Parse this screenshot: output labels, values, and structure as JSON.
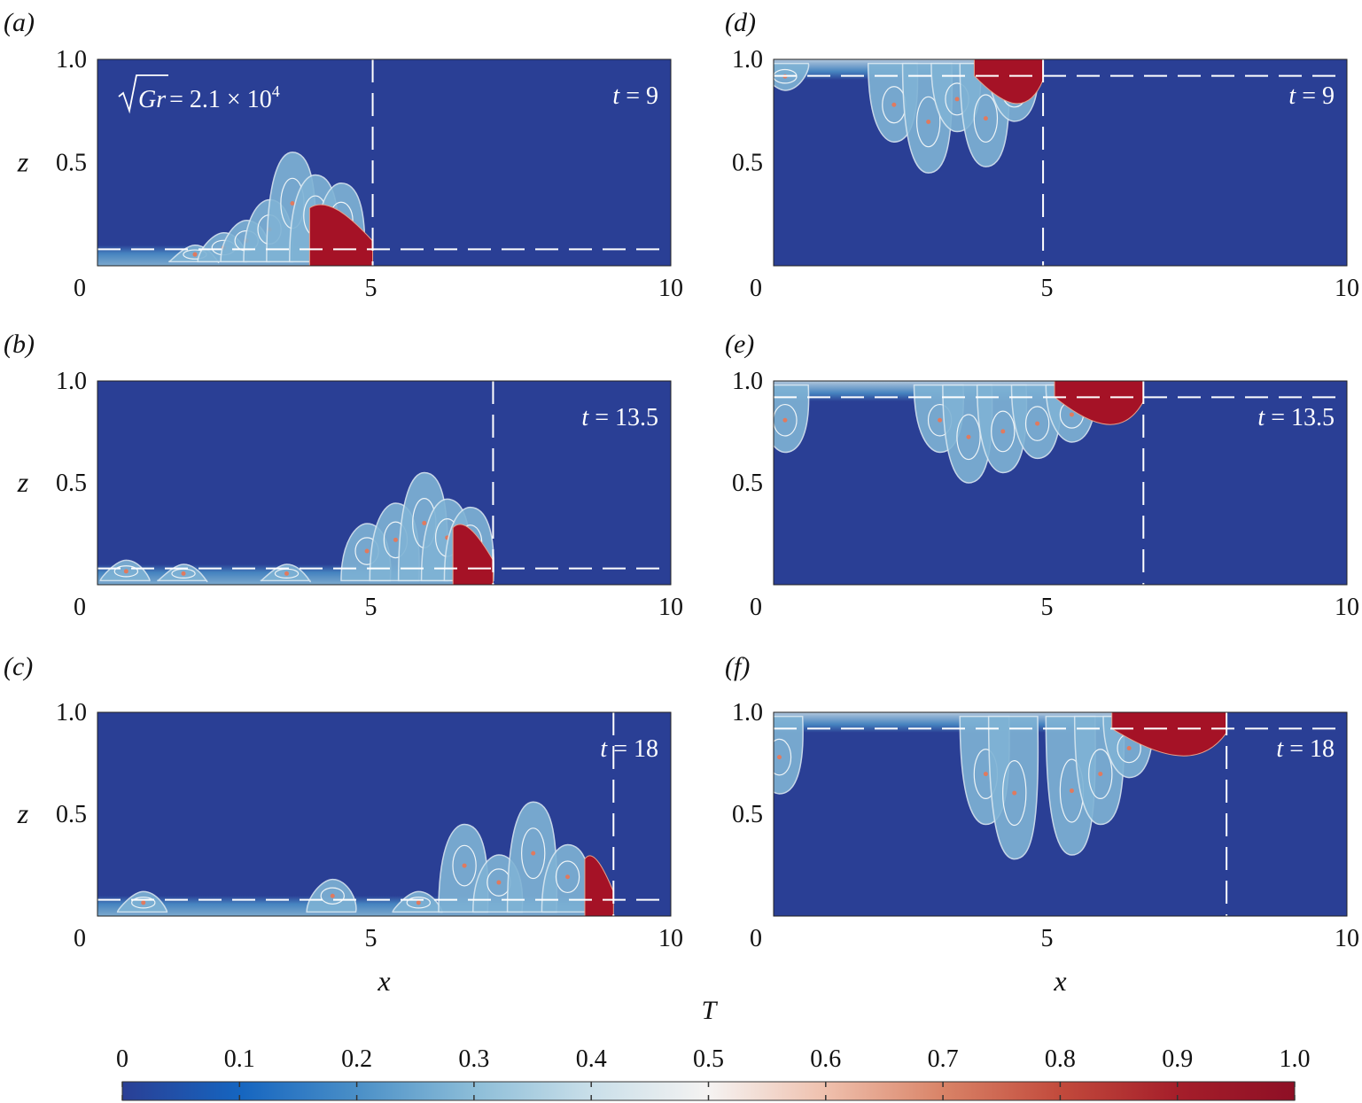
{
  "chart_data": [
    {
      "type": "heatmap",
      "panel": "(a)",
      "title": "",
      "annotation": "√Gr = 2.1 × 10^4",
      "annotation_parts": {
        "sqrt": "Gr",
        "eq": "= 2.1 × 10",
        "sup": "4"
      },
      "time_label": {
        "t": "t",
        "eq": "= 9"
      },
      "t": 9,
      "xlabel": "",
      "ylabel": "z",
      "xlim": [
        0,
        10
      ],
      "ylim": [
        0,
        1.0
      ],
      "xticks": [
        "0",
        "5",
        "10"
      ],
      "yticks": [
        "0.5",
        "1.0"
      ],
      "front_x": 4.8,
      "interface_z": 0.08,
      "current": "bottom",
      "dense_start_x": 3.7,
      "eddies": [
        {
          "x": 1.7,
          "h": 0.1
        },
        {
          "x": 2.2,
          "h": 0.16
        },
        {
          "x": 2.6,
          "h": 0.22
        },
        {
          "x": 3.0,
          "h": 0.32
        },
        {
          "x": 3.4,
          "h": 0.55
        },
        {
          "x": 3.8,
          "h": 0.44
        },
        {
          "x": 4.25,
          "h": 0.4
        }
      ]
    },
    {
      "type": "heatmap",
      "panel": "(b)",
      "title": "",
      "time_label": {
        "t": "t",
        "eq": "= 13.5"
      },
      "t": 13.5,
      "xlabel": "",
      "ylabel": "z",
      "xlim": [
        0,
        10
      ],
      "ylim": [
        0,
        1.0
      ],
      "xticks": [
        "0",
        "5",
        "10"
      ],
      "yticks": [
        "0.5",
        "1.0"
      ],
      "front_x": 6.9,
      "interface_z": 0.08,
      "current": "bottom",
      "dense_start_x": 6.2,
      "eddies": [
        {
          "x": 0.5,
          "h": 0.12
        },
        {
          "x": 1.5,
          "h": 0.1
        },
        {
          "x": 3.3,
          "h": 0.1
        },
        {
          "x": 4.7,
          "h": 0.3
        },
        {
          "x": 5.2,
          "h": 0.4
        },
        {
          "x": 5.7,
          "h": 0.55
        },
        {
          "x": 6.1,
          "h": 0.42
        },
        {
          "x": 6.5,
          "h": 0.38
        }
      ]
    },
    {
      "type": "heatmap",
      "panel": "(c)",
      "title": "",
      "time_label": {
        "t": "t",
        "eq": "= 18"
      },
      "t": 18,
      "xlabel": "x",
      "ylabel": "z",
      "xlim": [
        0,
        10
      ],
      "ylim": [
        0,
        1.0
      ],
      "xticks": [
        "0",
        "5",
        "10"
      ],
      "yticks": [
        "0.5",
        "1.0"
      ],
      "front_x": 9.0,
      "interface_z": 0.08,
      "current": "bottom",
      "dense_start_x": 8.5,
      "eddies": [
        {
          "x": 0.8,
          "h": 0.12
        },
        {
          "x": 4.1,
          "h": 0.18
        },
        {
          "x": 5.6,
          "h": 0.12
        },
        {
          "x": 6.4,
          "h": 0.45
        },
        {
          "x": 7.0,
          "h": 0.3
        },
        {
          "x": 7.6,
          "h": 0.56
        },
        {
          "x": 8.2,
          "h": 0.35
        }
      ]
    },
    {
      "type": "heatmap",
      "panel": "(d)",
      "title": "",
      "time_label": {
        "t": "t",
        "eq": "= 9"
      },
      "t": 9,
      "xlabel": "",
      "ylabel": "",
      "xlim": [
        0,
        10
      ],
      "ylim": [
        0,
        1.0
      ],
      "xticks": [
        "0",
        "5",
        "10"
      ],
      "yticks": [
        "0.5",
        "1.0"
      ],
      "front_x": 4.7,
      "interface_z": 0.92,
      "current": "top",
      "dense_start_x": 3.5,
      "dense_end_x": 4.7,
      "eddies": [
        {
          "x": 0.2,
          "h": 0.15
        },
        {
          "x": 2.1,
          "h": 0.4
        },
        {
          "x": 2.7,
          "h": 0.55
        },
        {
          "x": 3.2,
          "h": 0.35
        },
        {
          "x": 3.7,
          "h": 0.52
        },
        {
          "x": 4.2,
          "h": 0.3
        }
      ]
    },
    {
      "type": "heatmap",
      "panel": "(e)",
      "title": "",
      "time_label": {
        "t": "t",
        "eq": "= 13.5"
      },
      "t": 13.5,
      "xlabel": "",
      "ylabel": "",
      "xlim": [
        0,
        10
      ],
      "ylim": [
        0,
        1.0
      ],
      "xticks": [
        "0",
        "5",
        "10"
      ],
      "yticks": [
        "0.5",
        "1.0"
      ],
      "front_x": 6.45,
      "interface_z": 0.92,
      "current": "top",
      "dense_start_x": 4.9,
      "dense_end_x": 6.45,
      "eddies": [
        {
          "x": 0.2,
          "h": 0.35
        },
        {
          "x": 2.9,
          "h": 0.35
        },
        {
          "x": 3.4,
          "h": 0.5
        },
        {
          "x": 4.0,
          "h": 0.45
        },
        {
          "x": 4.6,
          "h": 0.38
        },
        {
          "x": 5.2,
          "h": 0.3
        },
        {
          "x": 5.8,
          "h": 0.2
        }
      ]
    },
    {
      "type": "heatmap",
      "panel": "(f)",
      "title": "",
      "time_label": {
        "t": "t",
        "eq": "= 18"
      },
      "t": 18,
      "xlabel": "x",
      "ylabel": "",
      "xlim": [
        0,
        10
      ],
      "ylim": [
        0,
        1.0
      ],
      "xticks": [
        "0",
        "5",
        "10"
      ],
      "yticks": [
        "0.5",
        "1.0"
      ],
      "front_x": 7.9,
      "interface_z": 0.92,
      "current": "top",
      "dense_start_x": 5.9,
      "dense_end_x": 7.9,
      "eddies": [
        {
          "x": 0.1,
          "h": 0.4
        },
        {
          "x": 3.7,
          "h": 0.55
        },
        {
          "x": 4.2,
          "h": 0.72
        },
        {
          "x": 5.2,
          "h": 0.7
        },
        {
          "x": 5.7,
          "h": 0.55
        },
        {
          "x": 6.2,
          "h": 0.32
        },
        {
          "x": 7.0,
          "h": 0.15
        }
      ]
    }
  ],
  "colorbar": {
    "label": "T",
    "ticks": [
      "0",
      "0.1",
      "0.2",
      "0.3",
      "0.4",
      "0.5",
      "0.6",
      "0.7",
      "0.8",
      "0.9",
      "1.0"
    ],
    "range": [
      0,
      1.0
    ],
    "colors": [
      "#2a3f95",
      "#1565c0",
      "#4a8fc7",
      "#8cbdd8",
      "#c9dfe9",
      "#f5f3f2",
      "#efc0ad",
      "#d98367",
      "#c24a3c",
      "#a51e2a",
      "#8e0f25"
    ]
  },
  "colors": {
    "background_field": "#2a3f95",
    "dense_fluid": "#a51226",
    "dashed_line": "#ffffff"
  }
}
